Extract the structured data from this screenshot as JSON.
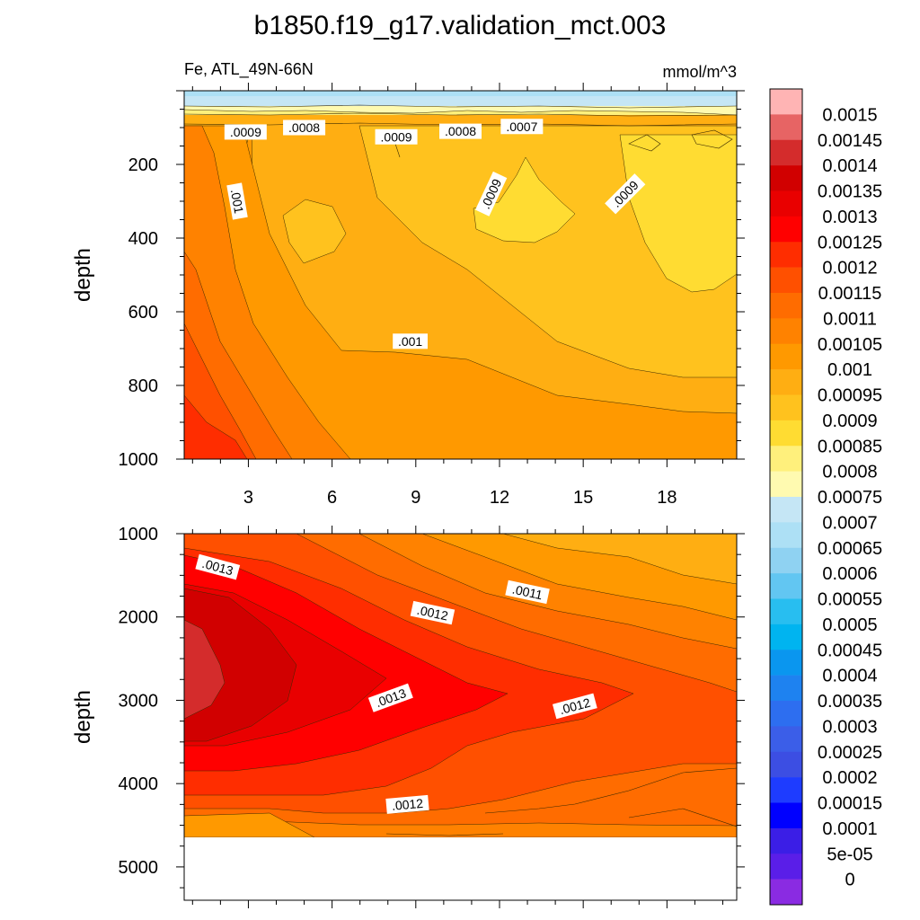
{
  "chart_data": {
    "type": "heatmap",
    "subtype": "filled-contour",
    "title": "b1850.f19_g17.validation_mct.003",
    "variable_label": "Fe, ATL_49N-66N",
    "units_label": "mmol/m^3",
    "ylabel": "depth",
    "x_range": [
      0.7,
      20.5
    ],
    "x_ticks": [
      3,
      6,
      9,
      12,
      15,
      18
    ],
    "panels": [
      {
        "name": "upper",
        "ylim": [
          0,
          1000
        ],
        "y_ticks": [
          200,
          400,
          600,
          800,
          1000
        ],
        "x_ticklabels_shown": true,
        "contour_labels": [
          {
            "text": ".0009",
            "x": 2.9,
            "y": 112,
            "angle": 0
          },
          {
            "text": ".0008",
            "x": 5.0,
            "y": 100,
            "angle": 0
          },
          {
            "text": ".0009",
            "x": 8.3,
            "y": 125,
            "angle": 0
          },
          {
            "text": ".0008",
            "x": 10.6,
            "y": 110,
            "angle": 0
          },
          {
            "text": ".0007",
            "x": 12.8,
            "y": 97,
            "angle": 0
          },
          {
            "text": ".001",
            "x": 2.6,
            "y": 300,
            "angle": 80
          },
          {
            "text": ".0009",
            "x": 11.7,
            "y": 280,
            "angle": -65
          },
          {
            "text": ".0009",
            "x": 16.5,
            "y": 280,
            "angle": -45
          },
          {
            "text": ".001",
            "x": 8.8,
            "y": 680,
            "angle": 0
          }
        ]
      },
      {
        "name": "lower",
        "ylim": [
          1000,
          5400
        ],
        "y_ticks": [
          1000,
          2000,
          3000,
          4000,
          5000
        ],
        "x_ticklabels_shown": false,
        "data_bottom": 4650,
        "contour_labels": [
          {
            "text": ".0013",
            "x": 1.9,
            "y": 1400,
            "angle": 15
          },
          {
            "text": ".0011",
            "x": 13.0,
            "y": 1700,
            "angle": 12
          },
          {
            "text": ".0012",
            "x": 9.6,
            "y": 1950,
            "angle": 12
          },
          {
            "text": ".0013",
            "x": 8.1,
            "y": 2970,
            "angle": -20
          },
          {
            "text": ".0012",
            "x": 14.7,
            "y": 3070,
            "angle": -15
          },
          {
            "text": ".0012",
            "x": 8.7,
            "y": 4250,
            "angle": -5
          }
        ]
      }
    ],
    "colorbar": {
      "labels": [
        "0.0015",
        "0.00145",
        "0.0014",
        "0.00135",
        "0.0013",
        "0.00125",
        "0.0012",
        "0.00115",
        "0.0011",
        "0.00105",
        "0.001",
        "0.00095",
        "0.0009",
        "0.00085",
        "0.0008",
        "0.00075",
        "0.0007",
        "0.00065",
        "0.0006",
        "0.00055",
        "0.0005",
        "0.00045",
        "0.0004",
        "0.00035",
        "0.0003",
        "0.00025",
        "0.0002",
        "0.00015",
        "0.0001",
        "5e-05",
        "0"
      ],
      "colors": [
        "#ffb4b4",
        "#e76464",
        "#d42c2c",
        "#d10000",
        "#e90000",
        "#ff0000",
        "#ff2d00",
        "#ff5000",
        "#ff6c00",
        "#ff8200",
        "#ff9900",
        "#ffae12",
        "#ffc21e",
        "#ffdc32",
        "#fff07c",
        "#fffab0",
        "#c5e6f5",
        "#ade0f5",
        "#8fd2f2",
        "#62c6f2",
        "#28bef0",
        "#00b4f0",
        "#0a96ef",
        "#1e82f0",
        "#2d6ef0",
        "#3b5ee8",
        "#3c4ee3",
        "#1e3cff",
        "#0000ff",
        "#3b1ee6",
        "#5a1ee8",
        "#8a2be2"
      ]
    }
  }
}
